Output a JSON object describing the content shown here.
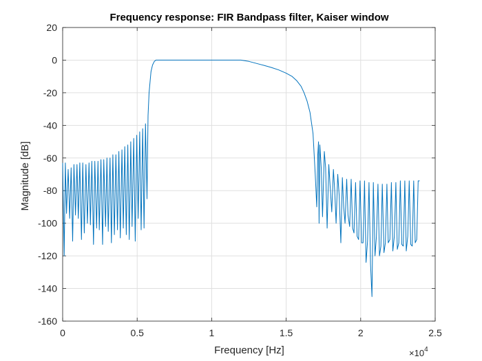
{
  "chart_data": {
    "type": "line",
    "title": "Frequency response: FIR Bandpass filter, Kaiser window",
    "xlabel": "Frequency [Hz]",
    "ylabel": "Magnitude [dB]",
    "xlim": [
      0,
      25000
    ],
    "ylim": [
      -160,
      20
    ],
    "x_exponent_label": "×10",
    "x_exponent_power": "4",
    "xticks": [
      {
        "value": 0,
        "label": "0"
      },
      {
        "value": 5000,
        "label": "0.5"
      },
      {
        "value": 10000,
        "label": "1"
      },
      {
        "value": 15000,
        "label": "1.5"
      },
      {
        "value": 20000,
        "label": "2"
      },
      {
        "value": 25000,
        "label": "2.5"
      }
    ],
    "yticks": [
      {
        "value": 20,
        "label": "20"
      },
      {
        "value": 0,
        "label": "0"
      },
      {
        "value": -20,
        "label": "-20"
      },
      {
        "value": -40,
        "label": "-40"
      },
      {
        "value": -60,
        "label": "-60"
      },
      {
        "value": -80,
        "label": "-80"
      },
      {
        "value": -100,
        "label": "-100"
      },
      {
        "value": -120,
        "label": "-120"
      },
      {
        "value": -140,
        "label": "-140"
      },
      {
        "value": -160,
        "label": "-160"
      }
    ],
    "grid": true,
    "series": [
      {
        "color": "#0072bd",
        "x": [
          0,
          100,
          180,
          260,
          370,
          470,
          570,
          670,
          760,
          860,
          960,
          1050,
          1150,
          1260,
          1350,
          1450,
          1560,
          1660,
          1770,
          1860,
          1960,
          2070,
          2160,
          2280,
          2370,
          2460,
          2570,
          2680,
          2760,
          2880,
          2970,
          3060,
          3180,
          3270,
          3370,
          3470,
          3570,
          3680,
          3770,
          3870,
          3980,
          4070,
          4170,
          4270,
          4370,
          4470,
          4570,
          4660,
          4770,
          4870,
          4970,
          5070,
          5170,
          5270,
          5370,
          5460,
          5560,
          5660,
          5730,
          5800,
          5880,
          5930,
          6030,
          6150,
          6260,
          6370,
          6480,
          6600,
          6720,
          6840,
          6960,
          7200,
          7400,
          8000,
          9000,
          10000,
          11000,
          11960,
          12500,
          13000,
          13500,
          14000,
          14500,
          15000,
          15400,
          15700,
          16000,
          16200,
          16400,
          16600,
          16800,
          16950,
          17050,
          17120,
          17170,
          17210,
          17260,
          17350,
          17440,
          17560,
          17650,
          17750,
          17860,
          17950,
          18060,
          18170,
          18260,
          18350,
          18460,
          18560,
          18670,
          18770,
          18860,
          18950,
          19060,
          19150,
          19260,
          19360,
          19460,
          19550,
          19660,
          19760,
          19860,
          19960,
          20060,
          20160,
          20260,
          20360,
          20460,
          20560,
          20660,
          20760,
          20850,
          20960,
          21060,
          21160,
          21260,
          21360,
          21450,
          21560,
          21660,
          21760,
          21850,
          21960,
          22060,
          22160,
          22260,
          22360,
          22460,
          22560,
          22660,
          22760,
          22860,
          22960,
          23060,
          23160,
          23260,
          23360,
          23460,
          23560,
          23660,
          23760,
          23860,
          23960
        ],
        "y": [
          -63,
          -120,
          -63,
          -94,
          -67,
          -97,
          -66,
          -111,
          -64,
          -95,
          -64,
          -97,
          -63,
          -110,
          -63,
          -106,
          -64,
          -100,
          -63,
          -101,
          -62,
          -113,
          -62,
          -103,
          -62,
          -104,
          -61,
          -113,
          -61,
          -102,
          -60,
          -105,
          -60,
          -112,
          -58,
          -107,
          -58,
          -104,
          -56,
          -109,
          -55,
          -103,
          -53,
          -107,
          -52,
          -110,
          -50,
          -102,
          -48,
          -111,
          -46,
          -97,
          -44,
          -104,
          -42,
          -103,
          -39,
          -85,
          -34,
          -20,
          -12,
          -7,
          -3,
          -0.8,
          0,
          0,
          0,
          0,
          0,
          0,
          0,
          0,
          0,
          0,
          0,
          0,
          0,
          0,
          -0.8,
          -2,
          -3.2,
          -4.5,
          -6,
          -8,
          -10,
          -12.5,
          -16,
          -20,
          -25,
          -32,
          -45,
          -70,
          -90,
          -58,
          -50,
          -100,
          -52,
          -66,
          -96,
          -56,
          -66,
          -103,
          -64,
          -77,
          -93,
          -67,
          -80,
          -100,
          -70,
          -83,
          -112,
          -72,
          -90,
          -100,
          -73,
          -95,
          -102,
          -73,
          -103,
          -106,
          -75,
          -108,
          -110,
          -74,
          -112,
          -112,
          -74,
          -124,
          -111,
          -75,
          -125,
          -145,
          -75,
          -120,
          -108,
          -76,
          -120,
          -114,
          -76,
          -118,
          -112,
          -76,
          -112,
          -110,
          -75,
          -117,
          -108,
          -75,
          -116,
          -112,
          -74,
          -113,
          -114,
          -74,
          -117,
          -108,
          -74,
          -113,
          -114,
          -74,
          -112,
          -110,
          -74,
          -74
        ]
      }
    ]
  }
}
